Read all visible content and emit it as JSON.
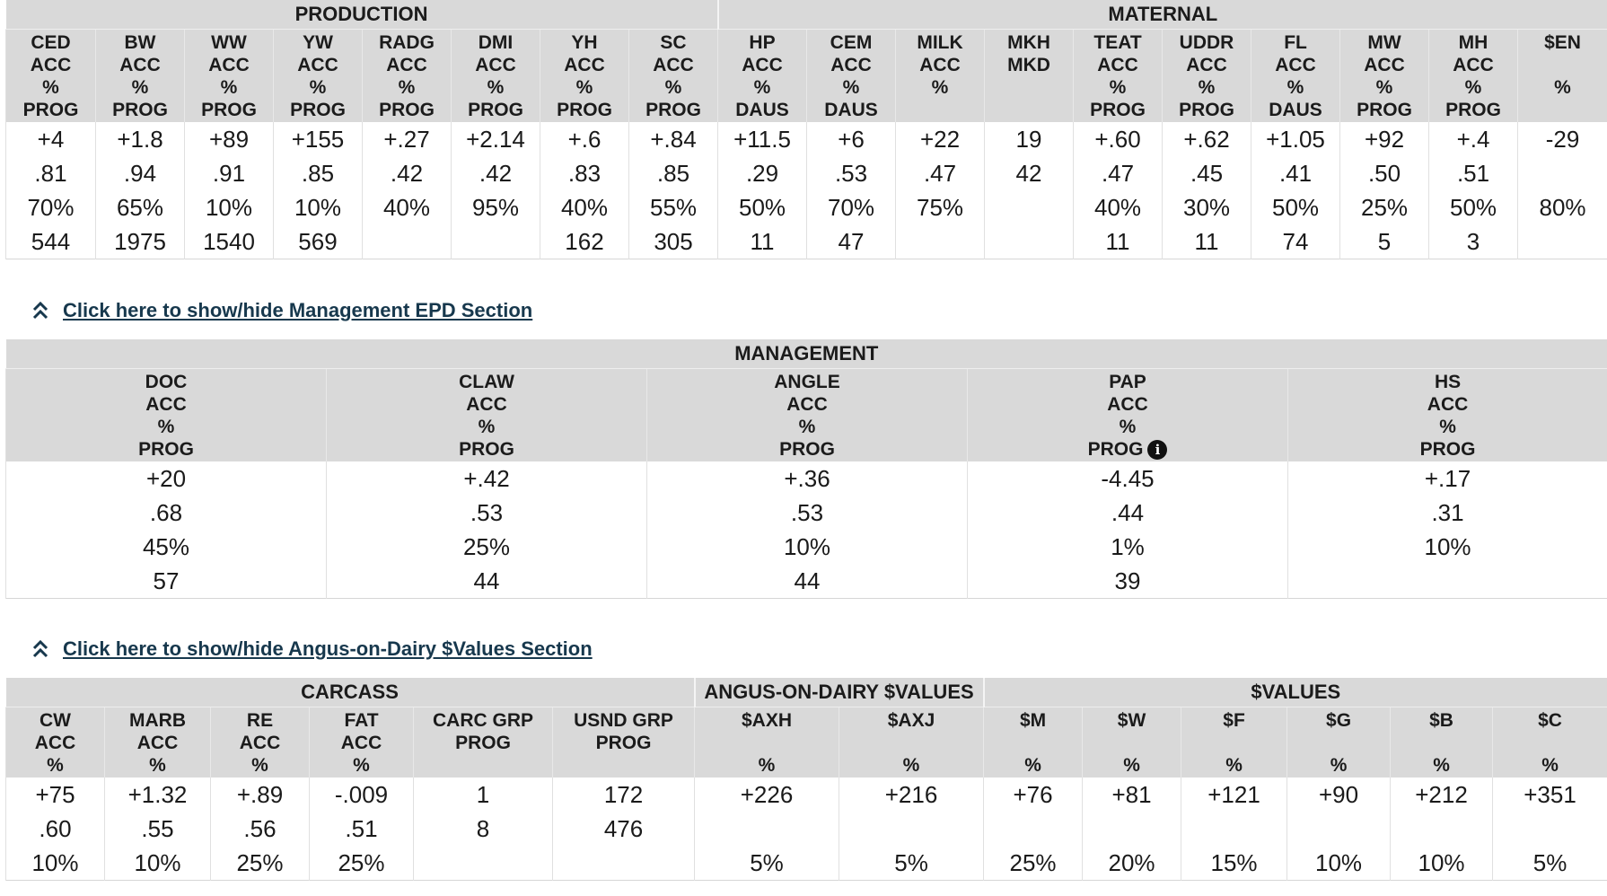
{
  "production_maternal": {
    "groups": [
      {
        "label": "PRODUCTION",
        "span": 8
      },
      {
        "label": "MATERNAL",
        "span": 10
      }
    ],
    "columns": [
      {
        "lines": [
          "CED",
          "ACC",
          "%",
          "PROG"
        ],
        "values": [
          "+4",
          ".81",
          "70%",
          "544"
        ]
      },
      {
        "lines": [
          "BW",
          "ACC",
          "%",
          "PROG"
        ],
        "values": [
          "+1.8",
          ".94",
          "65%",
          "1975"
        ]
      },
      {
        "lines": [
          "WW",
          "ACC",
          "%",
          "PROG"
        ],
        "values": [
          "+89",
          ".91",
          "10%",
          "1540"
        ]
      },
      {
        "lines": [
          "YW",
          "ACC",
          "%",
          "PROG"
        ],
        "values": [
          "+155",
          ".85",
          "10%",
          "569"
        ]
      },
      {
        "lines": [
          "RADG",
          "ACC",
          "%",
          "PROG"
        ],
        "values": [
          "+.27",
          ".42",
          "40%",
          ""
        ]
      },
      {
        "lines": [
          "DMI",
          "ACC",
          "%",
          "PROG"
        ],
        "values": [
          "+2.14",
          ".42",
          "95%",
          ""
        ]
      },
      {
        "lines": [
          "YH",
          "ACC",
          "%",
          "PROG"
        ],
        "values": [
          "+.6",
          ".83",
          "40%",
          "162"
        ]
      },
      {
        "lines": [
          "SC",
          "ACC",
          "%",
          "PROG"
        ],
        "values": [
          "+.84",
          ".85",
          "55%",
          "305"
        ]
      },
      {
        "lines": [
          "HP",
          "ACC",
          "%",
          "DAUS"
        ],
        "values": [
          "+11.5",
          ".29",
          "50%",
          "11"
        ]
      },
      {
        "lines": [
          "CEM",
          "ACC",
          "%",
          "DAUS"
        ],
        "values": [
          "+6",
          ".53",
          "70%",
          "47"
        ]
      },
      {
        "lines": [
          "MILK",
          "ACC",
          "%",
          ""
        ],
        "values": [
          "+22",
          ".47",
          "75%",
          ""
        ]
      },
      {
        "lines": [
          "MKH",
          "MKD",
          "",
          ""
        ],
        "values": [
          "19",
          "42",
          "",
          ""
        ]
      },
      {
        "lines": [
          "TEAT",
          "ACC",
          "%",
          "PROG"
        ],
        "values": [
          "+.60",
          ".47",
          "40%",
          "11"
        ]
      },
      {
        "lines": [
          "UDDR",
          "ACC",
          "%",
          "PROG"
        ],
        "values": [
          "+.62",
          ".45",
          "30%",
          "11"
        ]
      },
      {
        "lines": [
          "FL",
          "ACC",
          "%",
          "DAUS"
        ],
        "values": [
          "+1.05",
          ".41",
          "50%",
          "74"
        ]
      },
      {
        "lines": [
          "MW",
          "ACC",
          "%",
          "PROG"
        ],
        "values": [
          "+92",
          ".50",
          "25%",
          "5"
        ]
      },
      {
        "lines": [
          "MH",
          "ACC",
          "%",
          "PROG"
        ],
        "values": [
          "+.4",
          ".51",
          "50%",
          "3"
        ]
      },
      {
        "lines": [
          "$EN",
          "",
          "%",
          ""
        ],
        "values": [
          "-29",
          "",
          "80%",
          ""
        ]
      }
    ]
  },
  "toggle_management": "Click here to show/hide Management EPD Section",
  "management": {
    "groups": [
      {
        "label": "MANAGEMENT",
        "span": 5
      }
    ],
    "columns": [
      {
        "lines": [
          "DOC",
          "ACC",
          "%",
          "PROG"
        ],
        "values": [
          "+20",
          ".68",
          "45%",
          "57"
        ]
      },
      {
        "lines": [
          "CLAW",
          "ACC",
          "%",
          "PROG"
        ],
        "values": [
          "+.42",
          ".53",
          "25%",
          "44"
        ]
      },
      {
        "lines": [
          "ANGLE",
          "ACC",
          "%",
          "PROG"
        ],
        "values": [
          "+.36",
          ".53",
          "10%",
          "44"
        ]
      },
      {
        "lines": [
          "PAP",
          "ACC",
          "%",
          "PROG"
        ],
        "values": [
          "-4.45",
          ".44",
          "1%",
          "39"
        ],
        "info": true
      },
      {
        "lines": [
          "HS",
          "ACC",
          "%",
          "PROG"
        ],
        "values": [
          "+.17",
          ".31",
          "10%",
          ""
        ]
      }
    ]
  },
  "toggle_dollar": "Click here to show/hide Angus-on-Dairy $Values Section",
  "dollar_values": {
    "groups": [
      {
        "label": "CARCASS",
        "span": 6
      },
      {
        "label": "ANGUS-ON-DAIRY $VALUES",
        "span": 2
      },
      {
        "label": "$VALUES",
        "span": 6
      }
    ],
    "columns": [
      {
        "lines": [
          "CW",
          "ACC",
          "%"
        ],
        "values": [
          "+75",
          ".60",
          "10%"
        ]
      },
      {
        "lines": [
          "MARB",
          "ACC",
          "%"
        ],
        "values": [
          "+1.32",
          ".55",
          "10%"
        ]
      },
      {
        "lines": [
          "RE",
          "ACC",
          "%"
        ],
        "values": [
          "+.89",
          ".56",
          "25%"
        ]
      },
      {
        "lines": [
          "FAT",
          "ACC",
          "%"
        ],
        "values": [
          "-.009",
          ".51",
          "25%"
        ]
      },
      {
        "lines": [
          "CARC GRP",
          "PROG",
          ""
        ],
        "values": [
          "1",
          "8",
          ""
        ]
      },
      {
        "lines": [
          "USND GRP",
          "PROG",
          ""
        ],
        "values": [
          "172",
          "476",
          ""
        ]
      },
      {
        "lines": [
          "$AXH",
          "",
          "%"
        ],
        "values": [
          "+226",
          "",
          "5%"
        ]
      },
      {
        "lines": [
          "$AXJ",
          "",
          "%"
        ],
        "values": [
          "+216",
          "",
          "5%"
        ]
      },
      {
        "lines": [
          "$M",
          "",
          "%"
        ],
        "values": [
          "+76",
          "",
          "25%"
        ]
      },
      {
        "lines": [
          "$W",
          "",
          "%"
        ],
        "values": [
          "+81",
          "",
          "20%"
        ]
      },
      {
        "lines": [
          "$F",
          "",
          "%"
        ],
        "values": [
          "+121",
          "",
          "15%"
        ]
      },
      {
        "lines": [
          "$G",
          "",
          "%"
        ],
        "values": [
          "+90",
          "",
          "10%"
        ]
      },
      {
        "lines": [
          "$B",
          "",
          "%"
        ],
        "values": [
          "+212",
          "",
          "10%"
        ]
      },
      {
        "lines": [
          "$C",
          "",
          "%"
        ],
        "values": [
          "+351",
          "",
          "5%"
        ]
      }
    ]
  }
}
